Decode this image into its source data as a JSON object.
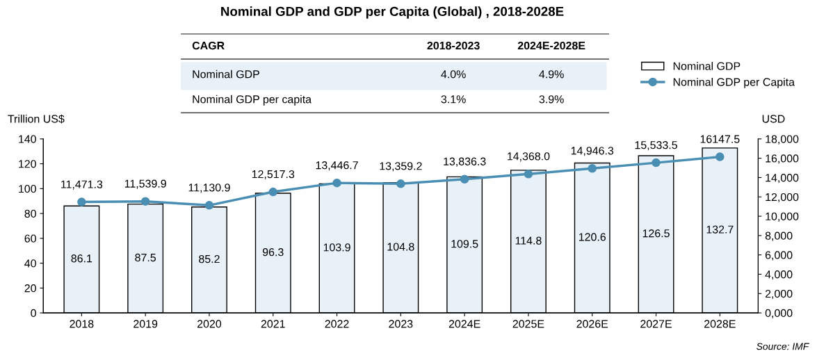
{
  "chart_data": {
    "type": "bar",
    "title": "Nominal GDP and GDP per Capita (Global) , 2018-2028E",
    "categories": [
      "2018",
      "2019",
      "2020",
      "2021",
      "2022",
      "2023",
      "2024E",
      "2025E",
      "2026E",
      "2027E",
      "2028E"
    ],
    "series": [
      {
        "name": "Nominal GDP",
        "type": "bar",
        "color": "#e8f1f8",
        "values": [
          86.1,
          87.5,
          85.2,
          96.3,
          103.9,
          104.8,
          109.5,
          114.8,
          120.6,
          126.5,
          132.7
        ],
        "value_labels": [
          "86.1",
          "87.5",
          "85.2",
          "96.3",
          "103.9",
          "104.8",
          "109.5",
          "114.8",
          "120.6",
          "126.5",
          "132.7"
        ]
      },
      {
        "name": "Nominal GDP per Capita",
        "type": "line",
        "axis": "y2",
        "color": "#4a8fb3",
        "values": [
          11471.3,
          11539.9,
          11130.9,
          12517.3,
          13446.7,
          13359.2,
          13836.3,
          14368.0,
          14946.3,
          15533.5,
          16147.5
        ],
        "value_labels": [
          "11,471.3",
          "11,539.9",
          "11,130.9",
          "12,517.3",
          "13,446.7",
          "13,359.2",
          "13,836.3",
          "14,368.0",
          "14,946.3",
          "15,533.5",
          "16147.5"
        ]
      }
    ],
    "ylabel": "Trillion US$",
    "y2label": "USD",
    "ylim": [
      0,
      140
    ],
    "yticks": [
      0,
      20,
      40,
      60,
      80,
      100,
      120,
      140
    ],
    "y2lim": [
      0,
      18000
    ],
    "y2ticks": [
      {
        "value": 0,
        "label": "0,000"
      },
      {
        "value": 2000,
        "label": "2,000"
      },
      {
        "value": 4000,
        "label": "4,000"
      },
      {
        "value": 6000,
        "label": "6,000"
      },
      {
        "value": 8000,
        "label": "8,000"
      },
      {
        "value": 10000,
        "label": "10,000"
      },
      {
        "value": 12000,
        "label": "12,000"
      },
      {
        "value": 14000,
        "label": "14,000"
      },
      {
        "value": 16000,
        "label": "16,000"
      },
      {
        "value": 18000,
        "label": "18,000"
      }
    ],
    "marker": "circle",
    "legend": "top right",
    "grid": false,
    "annotations": [
      "CAGR",
      "2018-2023",
      "2024E-2028E",
      "Nominal GDP",
      "4.0%",
      "4.9%",
      "Nominal GDP per capita",
      "3.1%",
      "3.9%",
      "Source: IMF"
    ]
  }
}
